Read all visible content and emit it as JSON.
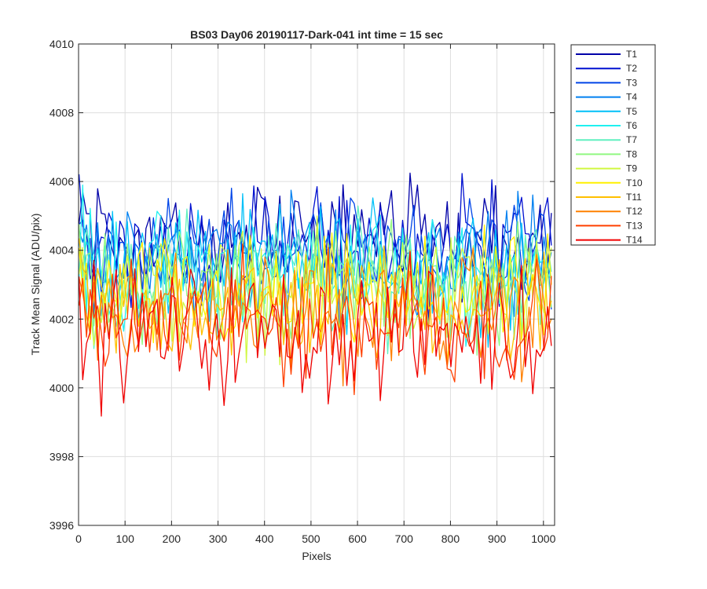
{
  "chart_data": {
    "type": "line",
    "title": "BS03 Day06 20190117-Dark-041 int time = 15 sec",
    "xlabel": "Pixels",
    "ylabel": "Track Mean Signal (ADU/pix)",
    "xlim": [
      0,
      1024
    ],
    "ylim": [
      3996,
      4010
    ],
    "x_ticks": [
      0,
      100,
      200,
      300,
      400,
      500,
      600,
      700,
      800,
      900,
      1000
    ],
    "y_ticks": [
      3996,
      3998,
      4000,
      4002,
      4004,
      4006,
      4008,
      4010
    ],
    "grid": true,
    "legend_position": "outside-top-right",
    "x_start": 1,
    "x_step": 8,
    "series": [
      {
        "name": "T1",
        "color": "#0000A8",
        "base": 4004.4,
        "amp": 0.85
      },
      {
        "name": "T2",
        "color": "#0010D0",
        "base": 4004.2,
        "amp": 0.85
      },
      {
        "name": "T3",
        "color": "#0045E8",
        "base": 4004.0,
        "amp": 0.85
      },
      {
        "name": "T4",
        "color": "#0080F0",
        "base": 4003.8,
        "amp": 0.85
      },
      {
        "name": "T5",
        "color": "#00C0F8",
        "base": 4003.6,
        "amp": 0.85
      },
      {
        "name": "T6",
        "color": "#20F0F0",
        "base": 4003.4,
        "amp": 0.85
      },
      {
        "name": "T7",
        "color": "#60F0C0",
        "base": 4003.2,
        "amp": 0.85
      },
      {
        "name": "T8",
        "color": "#90F880",
        "base": 4003.0,
        "amp": 0.85
      },
      {
        "name": "T9",
        "color": "#D0F840",
        "base": 4002.8,
        "amp": 0.85
      },
      {
        "name": "T10",
        "color": "#FFF000",
        "base": 4002.6,
        "amp": 0.85
      },
      {
        "name": "T11",
        "color": "#FFC000",
        "base": 4002.4,
        "amp": 0.85
      },
      {
        "name": "T12",
        "color": "#FF8000",
        "base": 4002.2,
        "amp": 0.85
      },
      {
        "name": "T13",
        "color": "#FF4000",
        "base": 4001.9,
        "amp": 0.9
      },
      {
        "name": "T14",
        "color": "#F00000",
        "base": 4001.6,
        "amp": 0.95
      }
    ]
  }
}
